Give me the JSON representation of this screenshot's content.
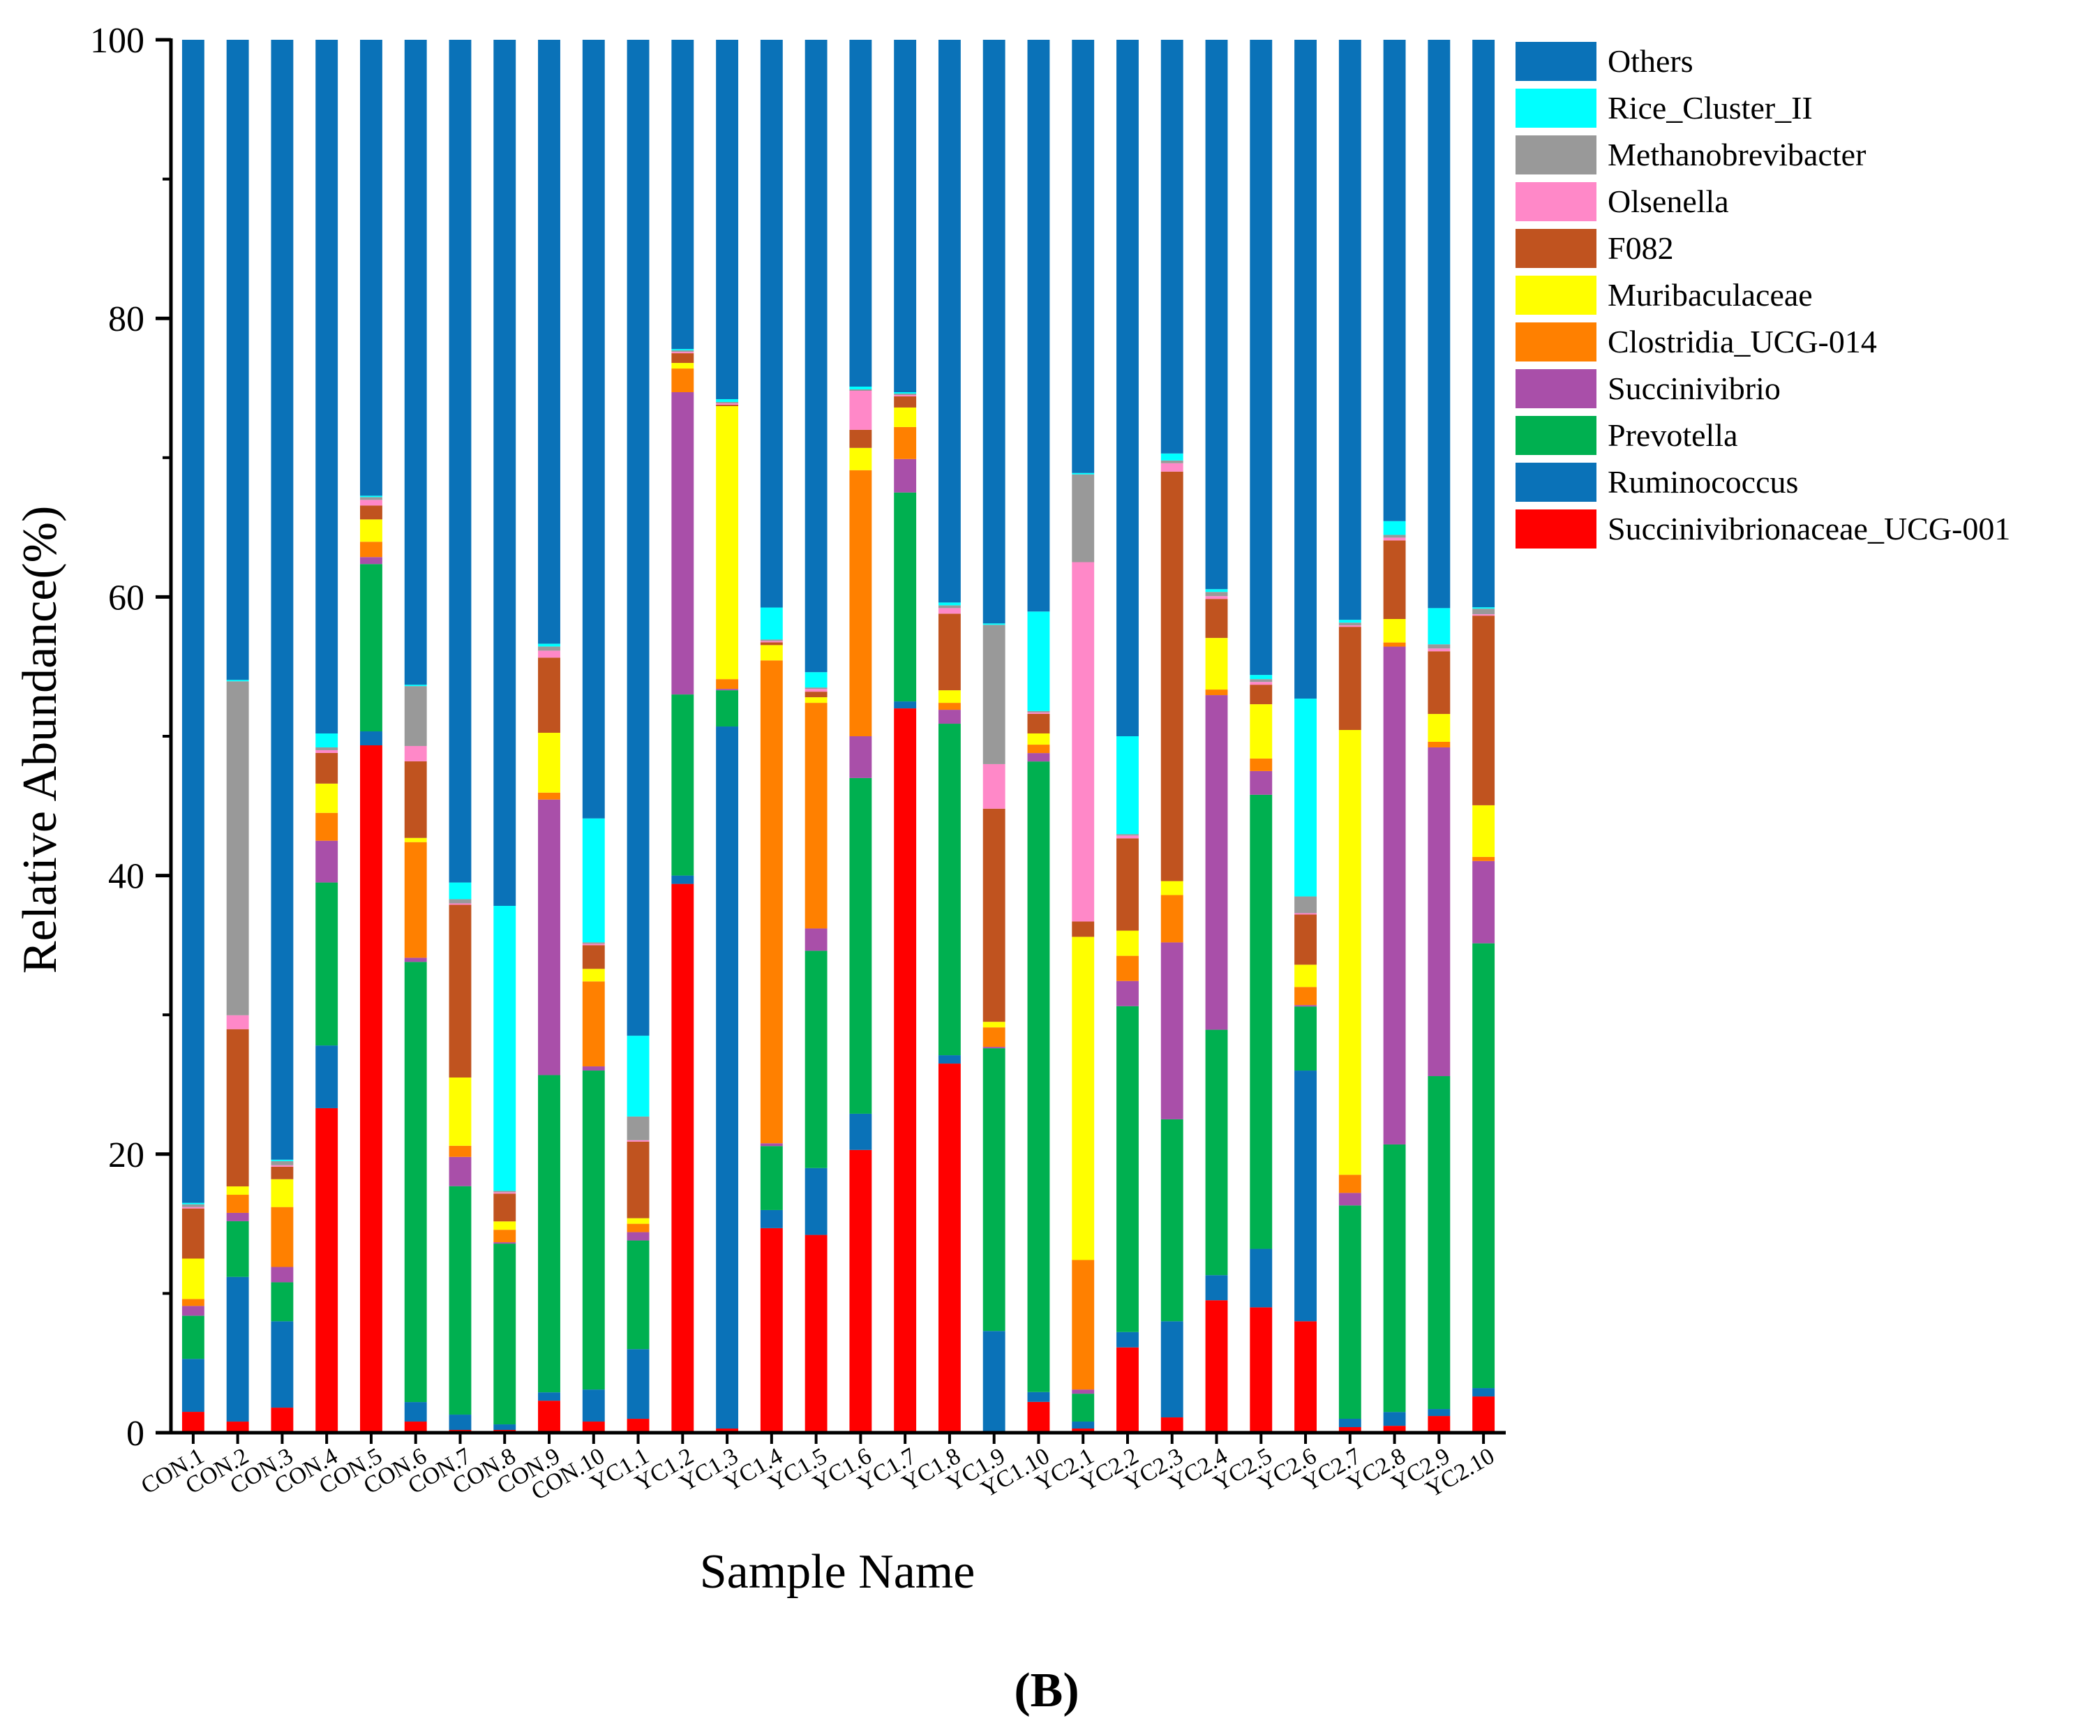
{
  "chart_data": {
    "type": "bar",
    "stacked": true,
    "ylabel": "Relative Abundance(%)",
    "xlabel": "Sample Name",
    "panel_label": "(B)",
    "ylim": [
      0,
      100
    ],
    "yticks": [
      0,
      20,
      40,
      60,
      80,
      100
    ],
    "legend_position": "right",
    "categories": [
      "CON.1",
      "CON.2",
      "CON.3",
      "CON.4",
      "CON.5",
      "CON.6",
      "CON.7",
      "CON.8",
      "CON.9",
      "CON.10",
      "YC1.1",
      "YC1.2",
      "YC1.3",
      "YC1.4",
      "YC1.5",
      "YC1.6",
      "YC1.7",
      "YC1.8",
      "YC1.9",
      "YC1.10",
      "YC2.1",
      "YC2.2",
      "YC2.3",
      "YC2.4",
      "YC2.5",
      "YC2.6",
      "YC2.7",
      "YC2.8",
      "YC2.9",
      "YC2.10"
    ],
    "series": [
      {
        "name": "Succinivibrionaceae_UCG-001",
        "color": "#ff0000",
        "values": [
          1.5,
          0.8,
          1.8,
          23.3,
          49.3,
          0.8,
          0.2,
          0.2,
          2.3,
          0.8,
          1.0,
          39.4,
          0.3,
          14.7,
          14.2,
          20.3,
          52.0,
          26.5,
          0.1,
          2.2,
          0.3,
          6.1,
          1.1,
          9.5,
          9.0,
          8.0,
          0.4,
          0.5,
          1.2,
          2.6
        ]
      },
      {
        "name": "Ruminococcus",
        "color": "#0a72b8",
        "values": [
          3.8,
          10.4,
          6.2,
          4.5,
          1.0,
          1.4,
          1.1,
          0.4,
          0.6,
          2.3,
          5.0,
          0.6,
          50.4,
          1.3,
          4.8,
          2.6,
          0.5,
          0.6,
          7.2,
          0.7,
          0.5,
          1.1,
          6.9,
          1.8,
          4.2,
          18.0,
          0.6,
          1.0,
          0.5,
          0.6
        ]
      },
      {
        "name": "Prevotella",
        "color": "#00b050",
        "values": [
          3.1,
          4.0,
          2.8,
          11.7,
          12.0,
          31.6,
          16.4,
          13.0,
          22.8,
          22.9,
          7.8,
          13.0,
          2.6,
          4.6,
          15.6,
          24.1,
          15.0,
          23.8,
          20.3,
          45.0,
          2.0,
          23.3,
          14.5,
          17.6,
          32.6,
          4.6,
          15.3,
          19.4,
          23.9,
          31.9
        ]
      },
      {
        "name": "Succinivibrio",
        "color": "#a94fa9",
        "values": [
          0.7,
          0.6,
          1.1,
          3.0,
          0.5,
          0.3,
          2.1,
          0.1,
          19.8,
          0.3,
          0.6,
          21.7,
          0.1,
          0.2,
          1.6,
          3.0,
          2.4,
          1.0,
          0.1,
          0.6,
          0.3,
          1.8,
          12.7,
          24.0,
          1.7,
          0.1,
          0.9,
          36.1,
          23.6,
          5.9
        ]
      },
      {
        "name": "Clostridia_UCG-014",
        "color": "#ff8000",
        "values": [
          0.5,
          1.3,
          4.3,
          2.0,
          1.1,
          8.3,
          0.8,
          0.9,
          0.5,
          6.1,
          0.6,
          1.7,
          0.7,
          34.7,
          16.2,
          19.1,
          2.3,
          0.5,
          1.4,
          0.6,
          9.3,
          1.8,
          3.4,
          0.4,
          0.9,
          1.3,
          1.3,
          0.3,
          0.4,
          0.3
        ]
      },
      {
        "name": "Muribaculaceae",
        "color": "#ffff00",
        "values": [
          2.9,
          0.6,
          2.0,
          2.1,
          1.6,
          0.3,
          4.9,
          0.6,
          4.3,
          0.9,
          0.4,
          0.4,
          19.6,
          1.1,
          0.4,
          1.6,
          1.4,
          0.9,
          0.4,
          0.8,
          23.2,
          1.8,
          1.0,
          3.7,
          3.9,
          1.6,
          31.9,
          1.7,
          2.0,
          3.7
        ]
      },
      {
        "name": "F082",
        "color": "#c0531f",
        "values": [
          3.6,
          11.3,
          0.9,
          2.2,
          1.0,
          5.5,
          12.4,
          2.0,
          5.4,
          1.7,
          5.5,
          0.7,
          0.1,
          0.2,
          0.4,
          1.3,
          0.8,
          5.5,
          15.3,
          1.4,
          1.1,
          6.6,
          29.4,
          2.8,
          1.4,
          3.6,
          7.4,
          5.7,
          4.5,
          13.6
        ]
      },
      {
        "name": "Olsenella",
        "color": "#ff88c8",
        "values": [
          0.1,
          1.0,
          0.1,
          0.2,
          0.4,
          1.1,
          0.1,
          0.1,
          0.5,
          0.1,
          0.1,
          0.1,
          0.1,
          0.1,
          0.2,
          2.8,
          0.1,
          0.4,
          3.2,
          0.1,
          25.8,
          0.2,
          0.6,
          0.2,
          0.2,
          0.1,
          0.1,
          0.2,
          0.2,
          0.1
        ]
      },
      {
        "name": "Methanobrevibacter",
        "color": "#999999",
        "values": [
          0.2,
          24.0,
          0.3,
          0.2,
          0.2,
          4.3,
          0.3,
          0.1,
          0.3,
          0.1,
          1.7,
          0.1,
          0.1,
          0.1,
          0.1,
          0.1,
          0.1,
          0.2,
          10.0,
          0.1,
          6.3,
          0.1,
          0.2,
          0.3,
          0.2,
          1.2,
          0.2,
          0.2,
          0.3,
          0.4
        ]
      },
      {
        "name": "Rice_Cluster_II",
        "color": "#00ffff",
        "values": [
          0.1,
          0.1,
          0.1,
          1.0,
          0.1,
          0.1,
          1.2,
          20.5,
          0.2,
          8.9,
          5.8,
          0.1,
          0.2,
          2.3,
          1.1,
          0.2,
          0.1,
          0.2,
          0.1,
          7.1,
          0.1,
          7.0,
          0.5,
          0.2,
          0.3,
          14.2,
          0.2,
          1.0,
          2.6,
          0.1
        ]
      },
      {
        "name": "Others",
        "color": "#0a72b8",
        "values": [
          83.5,
          46.0,
          80.4,
          49.8,
          32.7,
          46.3,
          60.5,
          62.3,
          43.4,
          55.9,
          71.5,
          22.2,
          25.8,
          40.8,
          45.4,
          24.9,
          25.3,
          40.4,
          41.9,
          40.8,
          31.1,
          49.8,
          29.7,
          39.4,
          45.6,
          47.3,
          41.6,
          34.9,
          40.8,
          40.7
        ]
      }
    ]
  }
}
